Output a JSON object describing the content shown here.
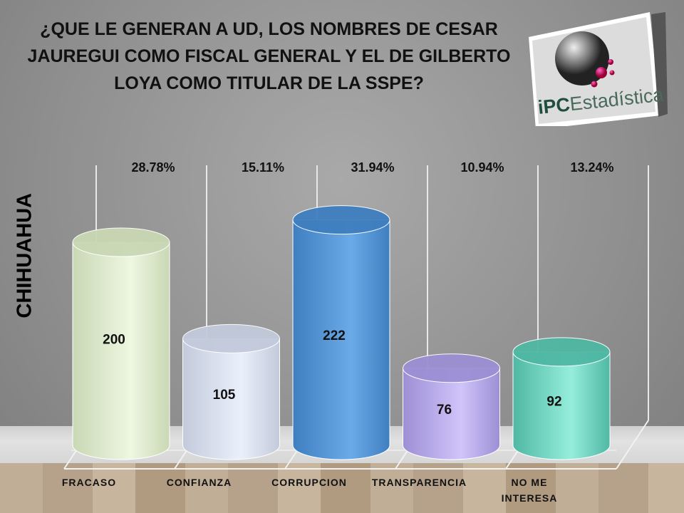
{
  "chart_data": {
    "type": "bar",
    "title": "¿QUE LE GENERAN A UD, LOS NOMBRES DE CESAR JAUREGUI COMO FISCAL GENERAL Y EL DE GILBERTO LOYA COMO TITULAR DE LA SSPE?",
    "ylabel": "CHIHUAHUA",
    "categories": [
      "FRACASO",
      "CONFIANZA",
      "CORRUPCION",
      "TRANSPARENCIA",
      "NO ME INTERESA"
    ],
    "values": [
      200,
      105,
      222,
      76,
      92
    ],
    "percent_labels": [
      "28.78%",
      "15.11%",
      "31.94%",
      "10.94%",
      "13.24%"
    ],
    "colors": [
      [
        "#c9d8b4",
        "#eef7e2"
      ],
      [
        "#c3cadb",
        "#eaf0fb"
      ],
      [
        "#3f7fc0",
        "#6aaae8"
      ],
      [
        "#9d8fd4",
        "#d0c4fb"
      ],
      [
        "#4fb8a4",
        "#95eedb"
      ]
    ],
    "ylim": [
      0,
      250
    ],
    "grid": false,
    "style": "3d-cylinder"
  },
  "logo": {
    "text": "iPCEstadística"
  }
}
